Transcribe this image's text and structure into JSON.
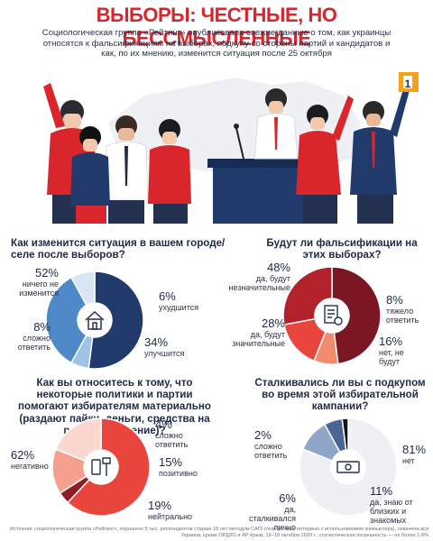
{
  "header": {
    "title": "ВЫБОРЫ: ЧЕСТНЫЕ, НО БЕССМЫСЛЕННЫЕ",
    "subtitle": "Социологическая группа «Рейтинг» опубликовала свежие данные о том, как украинцы относятся к фальсификациям на выборах, подкупу со стороны партий и кандидатов и как, по их мнению, изменится ситуация после 25 октября"
  },
  "illustration": {
    "sign_number": "1"
  },
  "chart_data": [
    {
      "type": "pie",
      "title": "Как изменится ситуация в вашем городе/селе после выборов?",
      "series": [
        {
          "label": "ничего не изменится",
          "value": 52,
          "color": "#203a6b"
        },
        {
          "label": "ухудшится",
          "value": 6,
          "color": "#9ec3e6"
        },
        {
          "label": "улучшится",
          "value": 34,
          "color": "#4e88c7"
        },
        {
          "label": "сложно ответить",
          "value": 8,
          "color": "#d8e6f3"
        }
      ]
    },
    {
      "type": "pie",
      "title": "Будут ли фальсификации на этих выборах?",
      "series": [
        {
          "label": "да, будут незначительные",
          "value": 48,
          "color": "#7a1722"
        },
        {
          "label": "тяжело ответить",
          "value": 8,
          "color": "#f28a6e"
        },
        {
          "label": "нет, не будут",
          "value": 16,
          "color": "#e8453c"
        },
        {
          "label": "да, будут значительные",
          "value": 28,
          "color": "#b3212a"
        }
      ]
    },
    {
      "type": "pie",
      "title": "Как вы относитесь к тому, что некоторые политики и партии помогают избирателям материально (раздают пайки, деньги, средства на ремонт и лечение)?",
      "series": [
        {
          "label": "негативно",
          "value": 62,
          "color": "#e8453c"
        },
        {
          "label": "сложно ответить",
          "value": 4,
          "color": "#8f1c24"
        },
        {
          "label": "позитивно",
          "value": 15,
          "color": "#f4a08c"
        },
        {
          "label": "нейтрально",
          "value": 19,
          "color": "#fbd8cf"
        }
      ]
    },
    {
      "type": "pie",
      "title": "Сталкивались ли вы с подкупом во время этой избирательной кампании?",
      "series": [
        {
          "label": "нет",
          "value": 81,
          "color": "#eef0f3"
        },
        {
          "label": "да, знаю от близких и знакомых",
          "value": 11,
          "color": "#8fa6c8"
        },
        {
          "label": "да, сталкивался лично",
          "value": 6,
          "color": "#4a6593"
        },
        {
          "label": "сложно ответить",
          "value": 2,
          "color": "#10141f"
        }
      ]
    }
  ],
  "labels": {
    "c1": [
      {
        "pct": "52%",
        "text": "ничего не изменится"
      },
      {
        "pct": "6%",
        "text": "ухудшится"
      },
      {
        "pct": "34%",
        "text": "улучшится"
      },
      {
        "pct": "8%",
        "text": "сложно ответить"
      }
    ],
    "c2": [
      {
        "pct": "48%",
        "text": "да, будут незначительные"
      },
      {
        "pct": "8%",
        "text": "тяжело ответить"
      },
      {
        "pct": "16%",
        "text": "нет, не будут"
      },
      {
        "pct": "28%",
        "text": "да, будут значительные"
      }
    ],
    "c3": [
      {
        "pct": "62%",
        "text": "негативно"
      },
      {
        "pct": "4%",
        "text": "сложно ответить"
      },
      {
        "pct": "15%",
        "text": "позитивно"
      },
      {
        "pct": "19%",
        "text": "нейтрально"
      }
    ],
    "c4": [
      {
        "pct": "81%",
        "text": "нет"
      },
      {
        "pct": "11%",
        "text": "да, знаю от близких и знакомых"
      },
      {
        "pct": "6%",
        "text": "да, сталкивался лично"
      },
      {
        "pct": "2%",
        "text": "сложно ответить"
      }
    ]
  },
  "footer": {
    "source": "Источник: социологическая группа «Рейтинг», опрошено 5 тыс. респондентов старше 18 лет методом САПІ (телефонные интервью с использованием компьютера), охвачена вся Украина, кроме ОРДЛО и АР Крым, 16–19 октября 2020 г., статистическая погрешность — не более 1,4%"
  }
}
